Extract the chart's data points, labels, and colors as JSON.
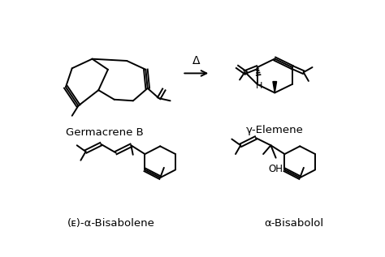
{
  "background_color": "#ffffff",
  "text_color": "#000000",
  "line_color": "#000000",
  "line_width": 1.4,
  "labels": {
    "germacrene": "Germacrene B",
    "elemene": "γ-Elemene",
    "bisabolene": "(ᴇ)-α-Bisabolene",
    "bisabolol": "α-Bisabolol"
  },
  "arrow_label": "Δ",
  "font_size": 9.5
}
